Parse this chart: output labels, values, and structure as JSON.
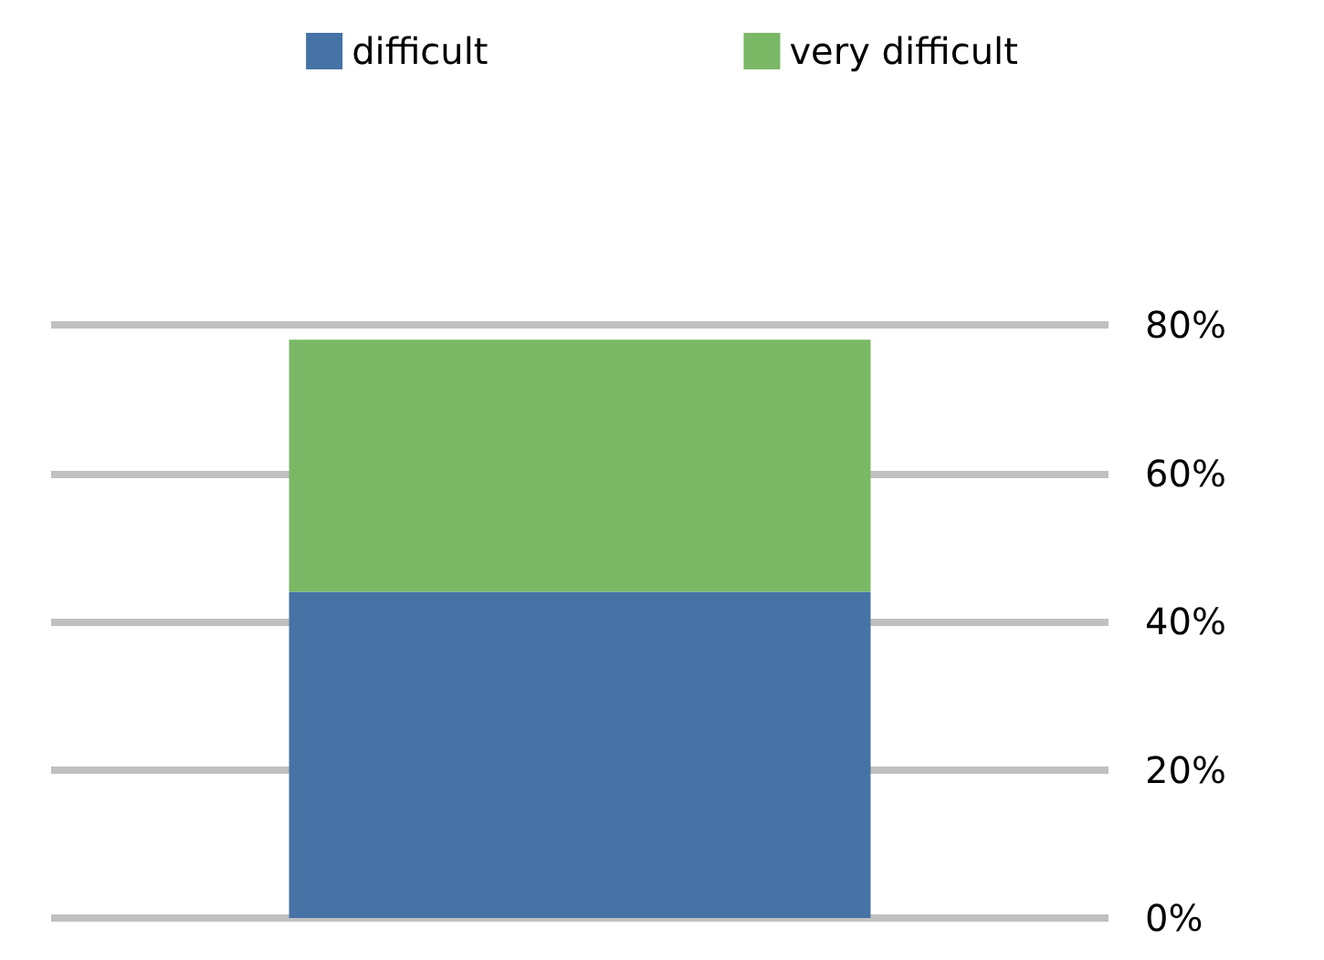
{
  "chart_data": {
    "type": "bar",
    "stacked": true,
    "categories": [
      null
    ],
    "series": [
      {
        "name": "difficult",
        "color": "#4672a6",
        "values": [
          44
        ]
      },
      {
        "name": "very difficult",
        "color": "#7ab865",
        "values": [
          34
        ]
      }
    ],
    "ylim": [
      0,
      80
    ],
    "yticks": [
      {
        "value": 0,
        "label": "0%"
      },
      {
        "value": 20,
        "label": "20%"
      },
      {
        "value": 40,
        "label": "40%"
      },
      {
        "value": 60,
        "label": "60%"
      },
      {
        "value": 80,
        "label": "80%"
      }
    ],
    "grid": "y",
    "legend": "top"
  }
}
